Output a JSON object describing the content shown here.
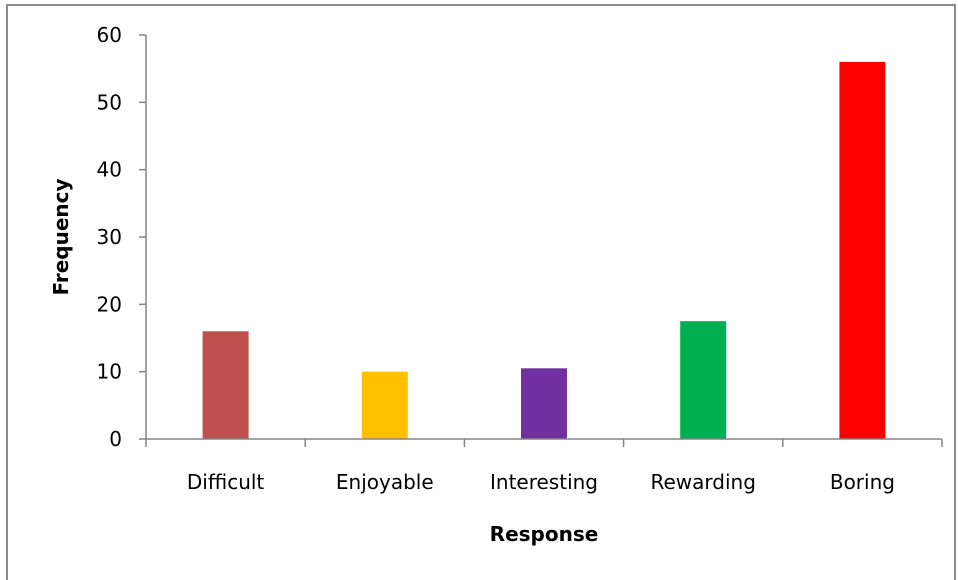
{
  "chart_data": {
    "type": "bar",
    "title": "",
    "xlabel": "Response",
    "ylabel": "Frequency",
    "categories": [
      "Difficult",
      "Enjoyable",
      "Interesting",
      "Rewarding",
      "Boring"
    ],
    "values": [
      16,
      10,
      10.5,
      17.5,
      56
    ],
    "colors": [
      "#c0504d",
      "#ffc000",
      "#7030a0",
      "#00b050",
      "#ff0000"
    ],
    "ylim": [
      0,
      60
    ],
    "yticks": [
      0,
      10,
      20,
      30,
      40,
      50,
      60
    ],
    "grid": false,
    "legend": "none"
  }
}
